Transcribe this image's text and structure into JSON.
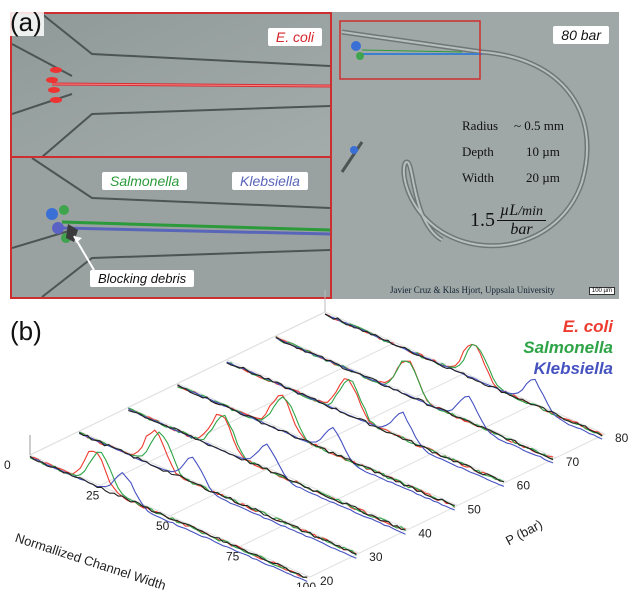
{
  "panel_a": {
    "label": "(a)",
    "top_left_tag": "E. coli",
    "bottom_left_tag_1": "Salmonella",
    "bottom_left_tag_2": "Klebsiella",
    "callout": "Blocking debris",
    "right_tag": "80 bar",
    "specs": [
      {
        "name": "Radius",
        "value": "~ 0.5 mm"
      },
      {
        "name": "Depth",
        "value": "10 µm"
      },
      {
        "name": "Width",
        "value": "20 µm"
      }
    ],
    "flow_rate": {
      "coef": "1.5",
      "num": "µL",
      "den_inline": "/min",
      "den": "bar"
    },
    "credit": "Javier Cruz & Klas Hjort, Uppsala University",
    "scale_bar": "100 µm",
    "colors": {
      "frame": "#cc2f2f",
      "ecoli": "#d7252b",
      "salmonella": "#2b9a3a",
      "klebsiella": "#5865b8"
    }
  },
  "panel_b": {
    "label": "(b)",
    "legend": [
      {
        "name": "E. coli",
        "color": "#ee3b30"
      },
      {
        "name": "Salmonella",
        "color": "#2fa447"
      },
      {
        "name": "Klebsiella",
        "color": "#4652c0"
      }
    ]
  },
  "chart_data": {
    "type": "line",
    "xlabel": "Normallized Channel Width",
    "ylabel": "P (bar)",
    "x_ticks": [
      "0",
      "25",
      "50",
      "75",
      "100"
    ],
    "p_ticks": [
      "20",
      "30",
      "40",
      "50",
      "60",
      "70",
      "80"
    ],
    "xlim": [
      0,
      100
    ],
    "plim": [
      20,
      80
    ],
    "pressures": [
      20,
      30,
      40,
      50,
      60,
      70,
      80
    ],
    "series": [
      {
        "name": "E. coli",
        "color": "#ee3b30",
        "peak_x": [
          22,
          26,
          32,
          36,
          42,
          46,
          52
        ]
      },
      {
        "name": "Salmonella",
        "color": "#2fa447",
        "peak_x": [
          24,
          28,
          33,
          37,
          43,
          46,
          53
        ]
      },
      {
        "name": "Klebsiella",
        "color": "#4652c0",
        "peak_x": [
          34,
          41,
          50,
          56,
          63,
          69,
          75
        ]
      }
    ]
  }
}
